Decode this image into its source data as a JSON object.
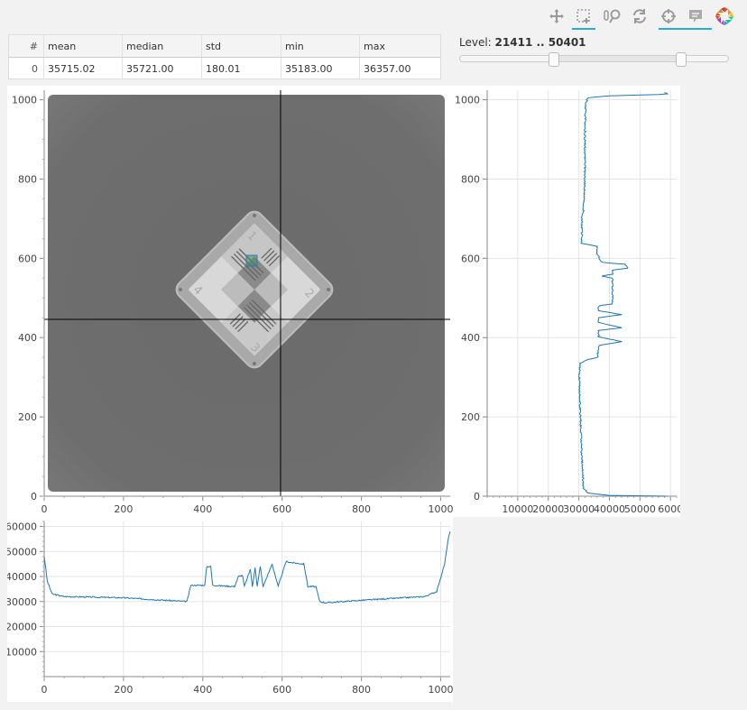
{
  "toolbar": {
    "tools": [
      {
        "name": "pan-tool",
        "icon": "pan-icon",
        "active": false
      },
      {
        "name": "box-select-tool",
        "icon": "box-select-icon",
        "active": true
      },
      {
        "name": "wheel-zoom-tool",
        "icon": "wheel-zoom-icon",
        "active": false
      },
      {
        "name": "reset-tool",
        "icon": "reset-icon",
        "active": false
      },
      {
        "name": "crosshair-tool",
        "icon": "crosshair-icon",
        "active": true
      },
      {
        "name": "hover-tool",
        "icon": "hover-icon",
        "active": true
      },
      {
        "name": "bokeh-logo",
        "icon": "bokeh-logo-icon",
        "active": false
      }
    ],
    "accent": "#26aae1"
  },
  "stats": {
    "headers": [
      "#",
      "mean",
      "median",
      "std",
      "min",
      "max"
    ],
    "rows": [
      [
        "0",
        "35715.02",
        "35721.00",
        "180.01",
        "35183.00",
        "36357.00"
      ]
    ]
  },
  "level": {
    "label": "Level:",
    "range_text": "21411 .. 50401",
    "min": 21411,
    "max": 50401,
    "slider_start": 0.35,
    "slider_end": 0.83
  },
  "image_plot": {
    "x_ticks": [
      "0",
      "200",
      "400",
      "600",
      "800",
      "1000"
    ],
    "y_ticks": [
      "0",
      "200",
      "400",
      "600",
      "800",
      "1000"
    ],
    "x_range": [
      0,
      1024
    ],
    "y_range": [
      0,
      1024
    ],
    "crosshair": {
      "x": 600,
      "y": 445
    },
    "selection_box": {
      "x": 520,
      "y": 590
    }
  },
  "chart_data": [
    {
      "type": "line",
      "orientation": "vertical",
      "x_ticks": [
        "10000",
        "20000",
        "30000",
        "40000",
        "50000",
        "6000"
      ],
      "y_ticks": [
        "0",
        "200",
        "400",
        "600",
        "800",
        "1000"
      ],
      "xlim": [
        0,
        62000
      ],
      "ylim": [
        0,
        1024
      ],
      "color": "#1f77b4",
      "points": [
        [
          59000,
          0
        ],
        [
          40000,
          2
        ],
        [
          33000,
          8
        ],
        [
          31500,
          20
        ],
        [
          31000,
          100
        ],
        [
          30500,
          200
        ],
        [
          30200,
          300
        ],
        [
          30300,
          335
        ],
        [
          33000,
          345
        ],
        [
          36000,
          350
        ],
        [
          36500,
          380
        ],
        [
          44000,
          390
        ],
        [
          36500,
          402
        ],
        [
          36500,
          418
        ],
        [
          44000,
          425
        ],
        [
          36500,
          438
        ],
        [
          36500,
          450
        ],
        [
          44000,
          458
        ],
        [
          36500,
          468
        ],
        [
          36500,
          480
        ],
        [
          41000,
          485
        ],
        [
          41000,
          550
        ],
        [
          37500,
          555
        ],
        [
          41000,
          560
        ],
        [
          41000,
          570
        ],
        [
          46000,
          575
        ],
        [
          45000,
          585
        ],
        [
          37500,
          590
        ],
        [
          36000,
          610
        ],
        [
          36000,
          630
        ],
        [
          31000,
          638
        ],
        [
          31000,
          700
        ],
        [
          31500,
          720
        ],
        [
          32000,
          800
        ],
        [
          32000,
          900
        ],
        [
          32200,
          990
        ],
        [
          33000,
          1005
        ],
        [
          40000,
          1010
        ],
        [
          56000,
          1013
        ],
        [
          59000,
          1015
        ],
        [
          58000,
          1018
        ]
      ]
    },
    {
      "type": "line",
      "orientation": "horizontal",
      "x_ticks": [
        "0",
        "200",
        "400",
        "600",
        "800",
        "1000"
      ],
      "y_ticks": [
        "10000",
        "20000",
        "30000",
        "40000",
        "50000",
        "60000"
      ],
      "xlim": [
        0,
        1024
      ],
      "ylim": [
        0,
        62000
      ],
      "color": "#1f77b4",
      "points": [
        [
          0,
          48000
        ],
        [
          8,
          38000
        ],
        [
          20,
          33000
        ],
        [
          50,
          32000
        ],
        [
          200,
          31500
        ],
        [
          360,
          30000
        ],
        [
          370,
          36500
        ],
        [
          405,
          36500
        ],
        [
          410,
          44000
        ],
        [
          420,
          44000
        ],
        [
          425,
          36500
        ],
        [
          480,
          36000
        ],
        [
          490,
          40000
        ],
        [
          500,
          40500
        ],
        [
          505,
          36000
        ],
        [
          520,
          43000
        ],
        [
          525,
          36000
        ],
        [
          532,
          43500
        ],
        [
          537,
          36000
        ],
        [
          545,
          44000
        ],
        [
          552,
          36000
        ],
        [
          575,
          45000
        ],
        [
          590,
          36000
        ],
        [
          610,
          46000
        ],
        [
          625,
          45500
        ],
        [
          655,
          45000
        ],
        [
          665,
          36000
        ],
        [
          685,
          36000
        ],
        [
          695,
          30000
        ],
        [
          710,
          29500
        ],
        [
          800,
          30500
        ],
        [
          960,
          32000
        ],
        [
          990,
          34000
        ],
        [
          1010,
          45000
        ],
        [
          1020,
          56000
        ],
        [
          1024,
          58000
        ]
      ]
    }
  ]
}
